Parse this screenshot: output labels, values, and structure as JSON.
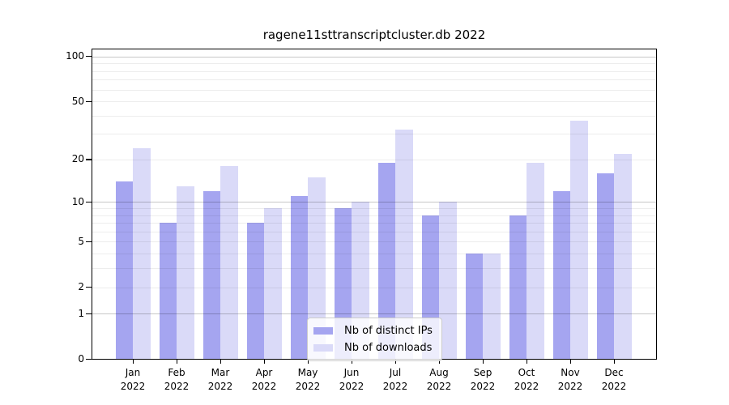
{
  "chart_data": {
    "type": "bar",
    "title": "ragene11sttranscriptcluster.db 2022",
    "categories": [
      "Jan 2022",
      "Feb 2022",
      "Mar 2022",
      "Apr 2022",
      "May 2022",
      "Jun 2022",
      "Jul 2022",
      "Aug 2022",
      "Sep 2022",
      "Oct 2022",
      "Nov 2022",
      "Dec 2022"
    ],
    "series": [
      {
        "name": "Nb of distinct IPs",
        "color": "#a5a5f0",
        "values": [
          14,
          7,
          12,
          7,
          11,
          9,
          19,
          8,
          4,
          8,
          12,
          16
        ]
      },
      {
        "name": "Nb of downloads",
        "color": "#dadaf8",
        "values": [
          24,
          13,
          18,
          9,
          15,
          10,
          32,
          10,
          4,
          19,
          37,
          22
        ]
      }
    ],
    "yscale": "log1p",
    "ylim": [
      0,
      113
    ],
    "yticks": [
      0,
      1,
      2,
      5,
      10,
      20,
      50,
      100
    ],
    "major_gridlines": [
      1,
      10,
      100
    ],
    "minor_gridlines": [
      2,
      3,
      4,
      5,
      6,
      7,
      8,
      9,
      20,
      30,
      40,
      50,
      60,
      70,
      80,
      90
    ],
    "grid": true,
    "legend_position": "lower center"
  },
  "colors": {
    "major_grid": "rgba(0,0,0,0.22)",
    "minor_grid": "rgba(0,0,0,0.07)",
    "frame": "#000000",
    "text": "#000000"
  }
}
